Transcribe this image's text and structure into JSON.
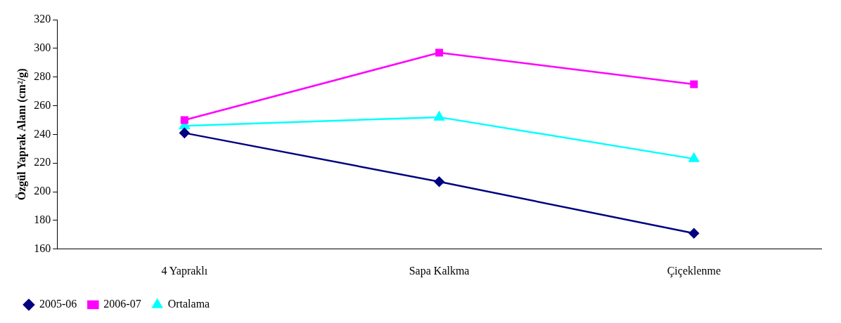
{
  "chart_data": {
    "type": "line",
    "ylabel": "Özgül Yaprak Alanı (cm²/g)",
    "categories": [
      "4 Yapraklı",
      "Sapa Kalkma",
      "Çiçeklenme"
    ],
    "series": [
      {
        "name": "2005-06",
        "color": "#000080",
        "marker": "diamond",
        "values": [
          241,
          207,
          171
        ]
      },
      {
        "name": "2006-07",
        "color": "#ff00ff",
        "marker": "square",
        "values": [
          250,
          297,
          275
        ]
      },
      {
        "name": "Ortalama",
        "color": "#00ffff",
        "marker": "triangle",
        "values": [
          246,
          252,
          223
        ]
      }
    ],
    "ylim": [
      160,
      320
    ],
    "yticks": [
      160,
      180,
      200,
      220,
      240,
      260,
      280,
      300,
      320
    ],
    "grid": false,
    "legend": "bottom left",
    "line_style": "solid"
  }
}
